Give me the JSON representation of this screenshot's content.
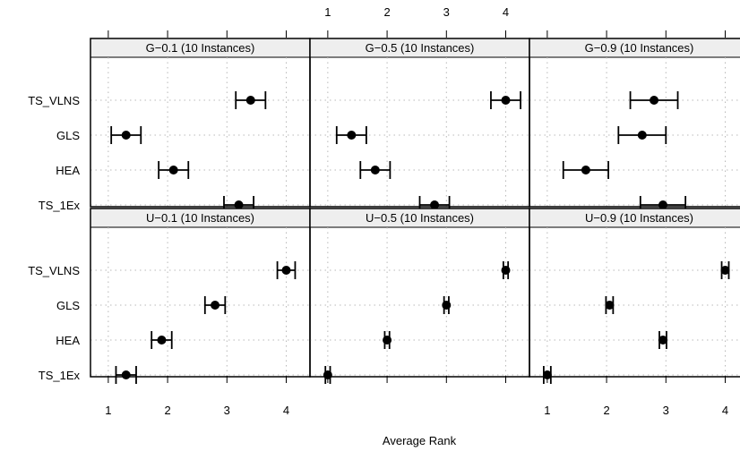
{
  "chart_data": {
    "type": "dot-interval",
    "xlabel": "Average Rank",
    "x_ticks": [
      1,
      2,
      3,
      4
    ],
    "xlim": [
      0.7,
      4.4
    ],
    "grid": true,
    "categories": [
      "TS_VLNS",
      "GLS",
      "HEA",
      "TS_1Ex"
    ],
    "panels": [
      {
        "title": "G−0.1   (10 Instances)",
        "rows": [
          {
            "method": "TS_VLNS",
            "mean": 3.4,
            "lower": 3.15,
            "upper": 3.65
          },
          {
            "method": "GLS",
            "mean": 1.3,
            "lower": 1.05,
            "upper": 1.55
          },
          {
            "method": "HEA",
            "mean": 2.1,
            "lower": 1.85,
            "upper": 2.35
          },
          {
            "method": "TS_1Ex",
            "mean": 3.2,
            "lower": 2.95,
            "upper": 3.45
          }
        ]
      },
      {
        "title": "G−0.5   (10 Instances)",
        "rows": [
          {
            "method": "TS_VLNS",
            "mean": 4.0,
            "lower": 3.75,
            "upper": 4.25
          },
          {
            "method": "GLS",
            "mean": 1.4,
            "lower": 1.15,
            "upper": 1.65
          },
          {
            "method": "HEA",
            "mean": 1.8,
            "lower": 1.55,
            "upper": 2.05
          },
          {
            "method": "TS_1Ex",
            "mean": 2.8,
            "lower": 2.55,
            "upper": 3.05
          }
        ]
      },
      {
        "title": "G−0.9   (10 Instances)",
        "rows": [
          {
            "method": "TS_VLNS",
            "mean": 2.8,
            "lower": 2.4,
            "upper": 3.2
          },
          {
            "method": "GLS",
            "mean": 2.6,
            "lower": 2.2,
            "upper": 3.0
          },
          {
            "method": "HEA",
            "mean": 1.65,
            "lower": 1.27,
            "upper": 2.03
          },
          {
            "method": "TS_1Ex",
            "mean": 2.95,
            "lower": 2.57,
            "upper": 3.33
          }
        ]
      },
      {
        "title": "U−0.1   (10 Instances)",
        "rows": [
          {
            "method": "TS_VLNS",
            "mean": 4.0,
            "lower": 3.85,
            "upper": 4.15
          },
          {
            "method": "GLS",
            "mean": 2.8,
            "lower": 2.63,
            "upper": 2.97
          },
          {
            "method": "HEA",
            "mean": 1.9,
            "lower": 1.73,
            "upper": 2.07
          },
          {
            "method": "TS_1Ex",
            "mean": 1.3,
            "lower": 1.13,
            "upper": 1.47
          }
        ]
      },
      {
        "title": "U−0.5   (10 Instances)",
        "rows": [
          {
            "method": "TS_VLNS",
            "mean": 4.0,
            "lower": 3.96,
            "upper": 4.04
          },
          {
            "method": "GLS",
            "mean": 3.0,
            "lower": 2.96,
            "upper": 3.04
          },
          {
            "method": "HEA",
            "mean": 2.0,
            "lower": 1.96,
            "upper": 2.04
          },
          {
            "method": "TS_1Ex",
            "mean": 1.0,
            "lower": 0.96,
            "upper": 1.04
          }
        ]
      },
      {
        "title": "U−0.9   (10 Instances)",
        "rows": [
          {
            "method": "TS_VLNS",
            "mean": 4.0,
            "lower": 3.94,
            "upper": 4.06
          },
          {
            "method": "GLS",
            "mean": 2.05,
            "lower": 1.99,
            "upper": 2.11
          },
          {
            "method": "HEA",
            "mean": 2.95,
            "lower": 2.89,
            "upper": 3.01
          },
          {
            "method": "TS_1Ex",
            "mean": 1.0,
            "lower": 0.94,
            "upper": 1.06
          }
        ]
      }
    ]
  }
}
